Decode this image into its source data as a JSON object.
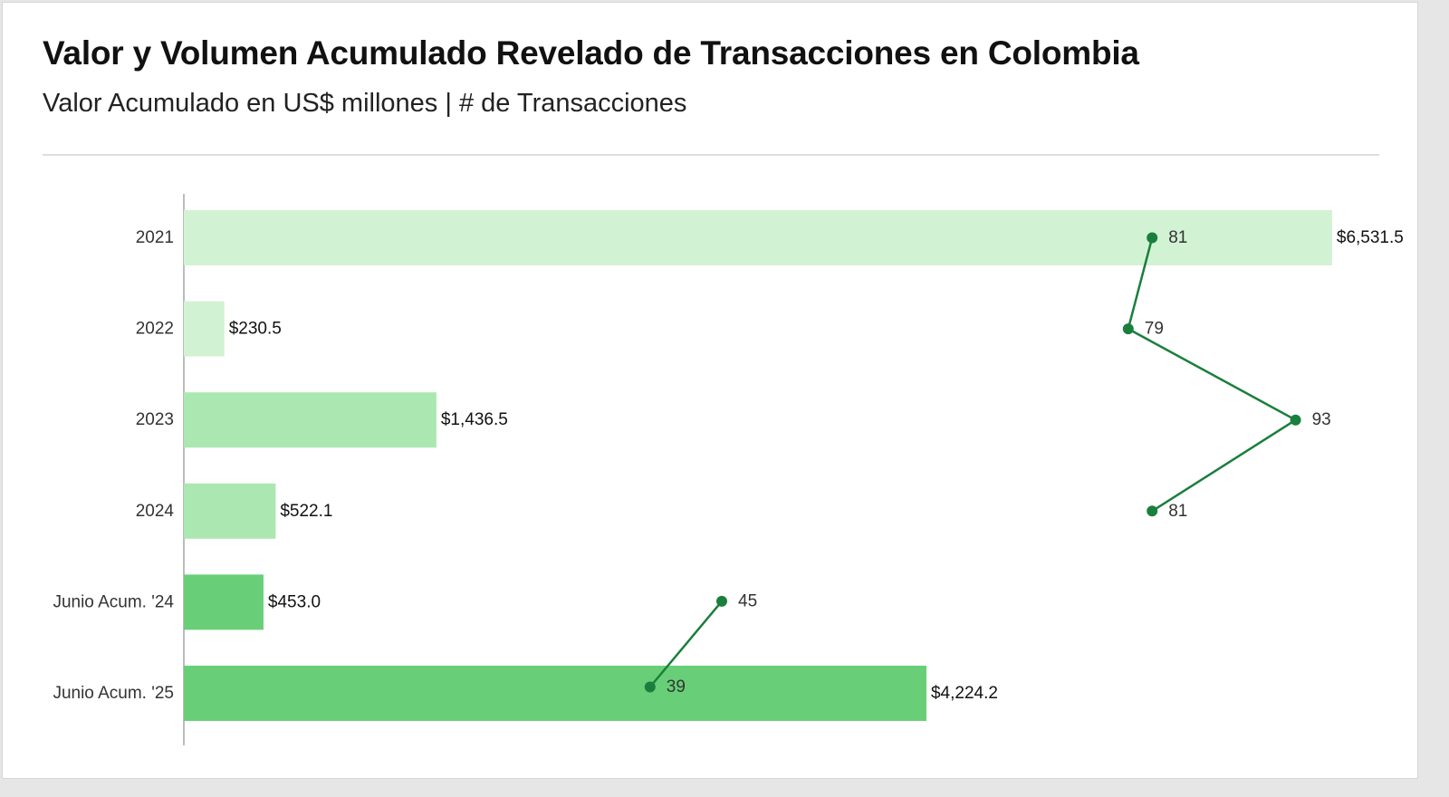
{
  "title": "Valor y Volumen Acumulado Revelado de Transacciones en Colombia",
  "subtitle": "Valor Acumulado en US$ millones | # de Transacciones",
  "chart_data": {
    "type": "bar",
    "orientation": "horizontal",
    "categories": [
      "2021",
      "2022",
      "2023",
      "2024",
      "Junio Acum. '24",
      "Junio Acum. '25"
    ],
    "series": [
      {
        "values": [
          6531.5,
          230.5,
          1436.5,
          522.1,
          453.0,
          4224.2
        ],
        "labels": [
          "$6,531.5",
          "$230.5",
          "$1,436.5",
          "$522.1",
          "$453.0",
          "$4,224.2"
        ],
        "colors": [
          "#d2f2d4",
          "#d2f2d4",
          "#abe7b0",
          "#abe7b0",
          "#68cf78",
          "#68cf78"
        ]
      },
      {
        "type": "line",
        "values": [
          81,
          79,
          93,
          81,
          45,
          39
        ],
        "labels": [
          "81",
          "79",
          "93",
          "81",
          "45",
          "39"
        ],
        "segments": [
          [
            0,
            1
          ],
          [
            1,
            2
          ],
          [
            2,
            3
          ],
          [
            4,
            5
          ]
        ],
        "color": "#1a7f3c"
      }
    ],
    "xlim_value": [
      0,
      6800
    ],
    "xlim_count": [
      0,
      100
    ],
    "xaxis_visible": false,
    "grid": false,
    "legend": "none"
  }
}
